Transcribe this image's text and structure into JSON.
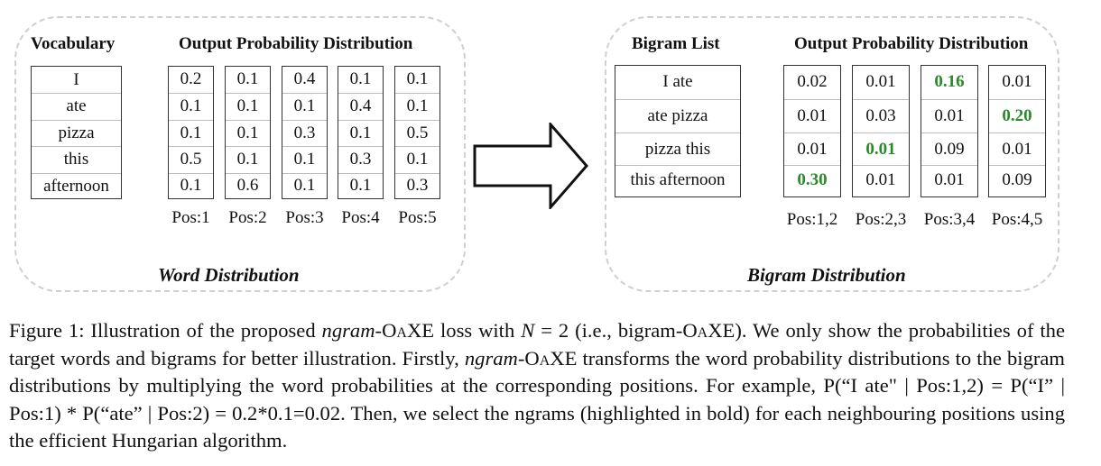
{
  "word_panel": {
    "vocab_header": "Vocabulary",
    "dist_header": "Output Probability Distribution",
    "vocabulary": [
      "I",
      "ate",
      "pizza",
      "this",
      "afternoon"
    ],
    "positions": [
      {
        "label": "Pos:1",
        "probs": [
          "0.2",
          "0.1",
          "0.1",
          "0.5",
          "0.1"
        ]
      },
      {
        "label": "Pos:2",
        "probs": [
          "0.1",
          "0.1",
          "0.1",
          "0.1",
          "0.6"
        ]
      },
      {
        "label": "Pos:3",
        "probs": [
          "0.4",
          "0.1",
          "0.3",
          "0.1",
          "0.1"
        ]
      },
      {
        "label": "Pos:4",
        "probs": [
          "0.1",
          "0.4",
          "0.1",
          "0.3",
          "0.1"
        ]
      },
      {
        "label": "Pos:5",
        "probs": [
          "0.1",
          "0.1",
          "0.5",
          "0.1",
          "0.3"
        ]
      }
    ],
    "caption": "Word Distribution"
  },
  "bigram_panel": {
    "list_header": "Bigram List",
    "dist_header": "Output Probability Distribution",
    "bigrams": [
      "I ate",
      "ate pizza",
      "pizza this",
      "this afternoon"
    ],
    "positions": [
      {
        "label": "Pos:1,2",
        "probs": [
          "0.02",
          "0.01",
          "0.01",
          "0.30"
        ],
        "bold_index": 3
      },
      {
        "label": "Pos:2,3",
        "probs": [
          "0.01",
          "0.03",
          "0.01",
          "0.01"
        ],
        "bold_index": 2
      },
      {
        "label": "Pos:3,4",
        "probs": [
          "0.16",
          "0.01",
          "0.09",
          "0.01"
        ],
        "bold_index": 0
      },
      {
        "label": "Pos:4,5",
        "probs": [
          "0.01",
          "0.20",
          "0.01",
          "0.09"
        ],
        "bold_index": 1
      }
    ],
    "caption": "Bigram Distribution",
    "highlight_color": "#2a8a2a"
  },
  "figure_caption": {
    "label": "Figure 1: Illustration of the proposed ",
    "ngram": "ngram",
    "oaxe_o": "-O",
    "oaxe_a": "a",
    "oaxe_xe": "XE loss with ",
    "n_var": "N",
    "n_eq": " = 2 (i.e., bigram-O",
    "n_a": "a",
    "n_rest": "XE). We only show the probabilities of the target words and bigrams for better illustration.  Firstly, ",
    "ngram2": "ngram",
    "oaxe2_o": "-O",
    "oaxe2_a": "a",
    "rest1": "XE transforms the word probability distributions to the bigram distributions by multiplying the word probabilities at the corresponding positions. For example, P(“I ate\" | Pos:1,2) = P(“I” | Pos:1) * P(“ate” | Pos:2) = 0.2*0.1=0.02. Then, we select the ngrams (highlighted in bold) for each neighbouring positions using the efficient Hungarian algorithm."
  }
}
